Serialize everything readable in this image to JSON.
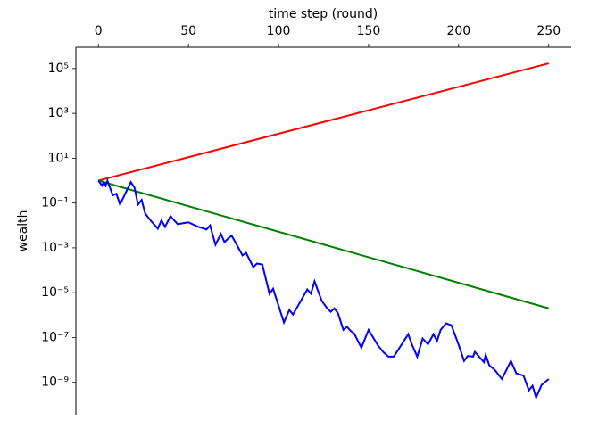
{
  "chart_data": {
    "type": "line",
    "xlabel": "time step (round)",
    "ylabel": "wealth",
    "log_y": true,
    "xlim": [
      -12.5,
      262.5
    ],
    "xticks": [
      0,
      50,
      100,
      150,
      200,
      250
    ],
    "ylim": [
      3.6e-11,
      890000.0
    ],
    "yticks": [
      {
        "value": 1e-09,
        "label": "10⁻⁹"
      },
      {
        "value": 1e-07,
        "label": "10⁻⁷"
      },
      {
        "value": 1e-05,
        "label": "10⁻⁵"
      },
      {
        "value": 0.001,
        "label": "10⁻³"
      },
      {
        "value": 0.1,
        "label": "10⁻¹"
      },
      {
        "value": 10,
        "label": "10¹"
      },
      {
        "value": 1000,
        "label": "10³"
      },
      {
        "value": 100000,
        "label": "10⁵"
      }
    ],
    "series": [
      {
        "color": "#ff0000",
        "x": [
          0,
          250
        ],
        "values": [
          1,
          170000
        ]
      },
      {
        "color": "#008000",
        "x": [
          0,
          250
        ],
        "values": [
          1,
          2e-06
        ]
      },
      {
        "color": "#0000ff",
        "x": [
          0,
          2,
          3,
          4,
          5,
          8,
          10,
          12,
          18,
          20,
          22,
          24,
          26,
          29,
          33,
          35,
          37,
          40,
          44,
          50,
          55,
          60,
          62,
          65,
          68,
          70,
          72,
          74,
          76,
          80,
          82,
          86,
          88,
          91,
          95,
          97,
          103,
          106,
          108,
          110,
          116,
          118,
          120,
          124,
          127,
          129,
          131,
          133,
          136,
          138,
          140,
          142,
          146,
          150,
          155,
          158,
          161,
          164,
          166,
          172,
          174,
          177,
          180,
          183,
          186,
          188,
          190,
          193,
          196,
          200,
          203,
          205,
          208,
          209,
          214,
          215,
          217,
          220,
          224,
          229,
          232,
          236,
          239,
          241,
          243,
          246,
          250
        ],
        "values": [
          1,
          0.6,
          0.86,
          0.6,
          1,
          0.22,
          0.26,
          0.086,
          0.86,
          0.5,
          0.086,
          0.137,
          0.034,
          0.0166,
          0.0072,
          0.017,
          0.0087,
          0.026,
          0.0115,
          0.0138,
          0.009,
          0.0066,
          0.01,
          0.00138,
          0.0042,
          0.0018,
          0.0026,
          0.0035,
          0.0018,
          0.00046,
          0.0006,
          0.000138,
          0.0002,
          0.00018,
          8.9e-06,
          1.5e-05,
          4.7e-07,
          1.7e-06,
          1.07e-06,
          2e-06,
          1.4e-05,
          9e-06,
          3.2e-05,
          4.3e-06,
          2e-06,
          1.4e-06,
          2e-06,
          1.2e-06,
          2.2e-07,
          3e-07,
          2e-07,
          1.5e-07,
          3.5e-08,
          2.2e-07,
          4.7e-08,
          2.3e-08,
          1.4e-08,
          1.4e-08,
          2.5e-08,
          1.4e-07,
          5e-08,
          1.4e-08,
          9e-08,
          5e-08,
          1.4e-07,
          7e-08,
          2.2e-07,
          4.3e-07,
          3.5e-07,
          4.7e-08,
          9e-09,
          1.5e-08,
          1.4e-08,
          2.3e-08,
          8e-09,
          1.7e-08,
          5.8e-09,
          3.6e-09,
          1.4e-09,
          9e-09,
          2.5e-09,
          2e-09,
          4.4e-10,
          7e-10,
          2.1e-10,
          7.6e-10,
          1.4e-09
        ]
      }
    ]
  }
}
